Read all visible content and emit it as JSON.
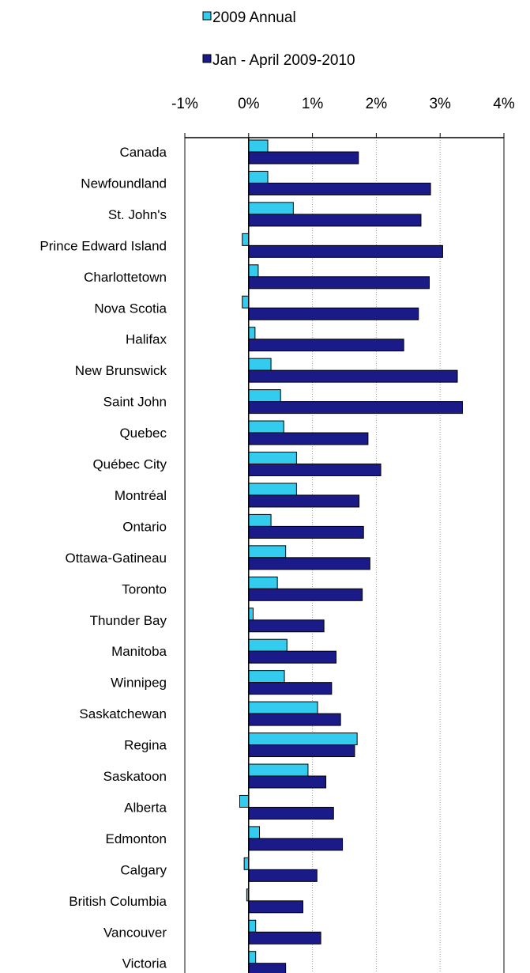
{
  "chart_data": {
    "type": "bar",
    "orientation": "horizontal",
    "xlim": [
      -1,
      4
    ],
    "x_tick_labels": [
      "-1%",
      "0%",
      "1%",
      "2%",
      "3%",
      "4%"
    ],
    "x_ticks": [
      -1,
      0,
      1,
      2,
      3,
      4
    ],
    "grid": "vertical dotted",
    "legend_position": "top",
    "categories": [
      "Canada",
      "Newfoundland",
      "St. John's",
      "Prince Edward Island",
      "Charlottetown",
      "Nova Scotia",
      "Halifax",
      "New Brunswick",
      "Saint John",
      "Quebec",
      "Québec City",
      "Montréal",
      "Ontario",
      "Ottawa-Gatineau",
      "Toronto",
      "Thunder Bay",
      "Manitoba",
      "Winnipeg",
      "Saskatchewan",
      "Regina",
      "Saskatoon",
      "Alberta",
      "Edmonton",
      "Calgary",
      "British Columbia",
      "Vancouver",
      "Victoria"
    ],
    "series": [
      {
        "name": "2009 Annual",
        "color": "#33CCEE",
        "values": [
          0.3,
          0.3,
          0.7,
          -0.1,
          0.15,
          -0.1,
          0.1,
          0.35,
          0.5,
          0.55,
          0.75,
          0.75,
          0.35,
          0.58,
          0.45,
          0.07,
          0.6,
          0.56,
          1.08,
          1.7,
          0.93,
          -0.14,
          0.17,
          -0.07,
          -0.03,
          0.11,
          0.11
        ]
      },
      {
        "name": "Jan - April 2009-2010",
        "color": "#1A1A88",
        "values": [
          1.72,
          2.85,
          2.7,
          3.04,
          2.83,
          2.66,
          2.43,
          3.27,
          3.35,
          1.87,
          2.07,
          1.73,
          1.8,
          1.9,
          1.78,
          1.18,
          1.37,
          1.3,
          1.44,
          1.66,
          1.21,
          1.33,
          1.47,
          1.07,
          0.85,
          1.13,
          0.58
        ]
      }
    ]
  }
}
